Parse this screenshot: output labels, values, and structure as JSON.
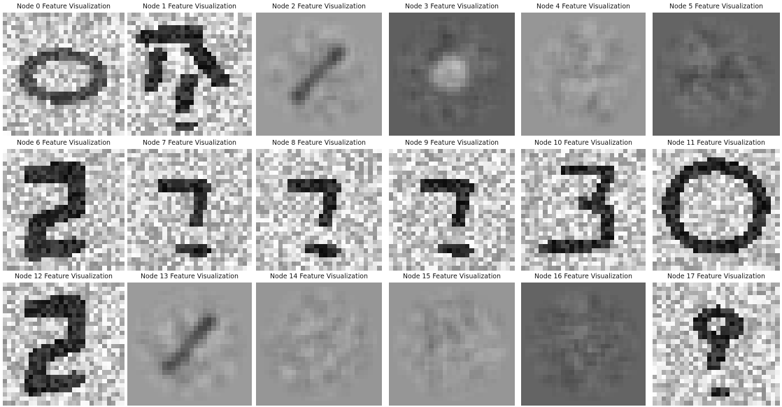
{
  "panels": [
    {
      "title": "Node 0 Feature Visualization",
      "style": "noisy-ring"
    },
    {
      "title": "Node 1 Feature Visualization",
      "style": "noisy-blobs"
    },
    {
      "title": "Node 2 Feature Visualization",
      "style": "smooth-diagonal"
    },
    {
      "title": "Node 3 Feature Visualization",
      "style": "smooth-dark-center"
    },
    {
      "title": "Node 4 Feature Visualization",
      "style": "smooth-soft"
    },
    {
      "title": "Node 5 Feature Visualization",
      "style": "smooth-dark"
    },
    {
      "title": "Node 6 Feature Visualization",
      "style": "noisy-two"
    },
    {
      "title": "Node 7 Feature Visualization",
      "style": "noisy-seven"
    },
    {
      "title": "Node 8 Feature Visualization",
      "style": "noisy-seven"
    },
    {
      "title": "Node 9 Feature Visualization",
      "style": "noisy-seven"
    },
    {
      "title": "Node 10 Feature Visualization",
      "style": "noisy-three"
    },
    {
      "title": "Node 11 Feature Visualization",
      "style": "noisy-zero"
    },
    {
      "title": "Node 12 Feature Visualization",
      "style": "noisy-two"
    },
    {
      "title": "Node 13 Feature Visualization",
      "style": "smooth-diagonal"
    },
    {
      "title": "Node 14 Feature Visualization",
      "style": "smooth-bright"
    },
    {
      "title": "Node 15 Feature Visualization",
      "style": "smooth-soft"
    },
    {
      "title": "Node 16 Feature Visualization",
      "style": "smooth-dark"
    },
    {
      "title": "Node 17 Feature Visualization",
      "style": "noisy-nine"
    }
  ]
}
